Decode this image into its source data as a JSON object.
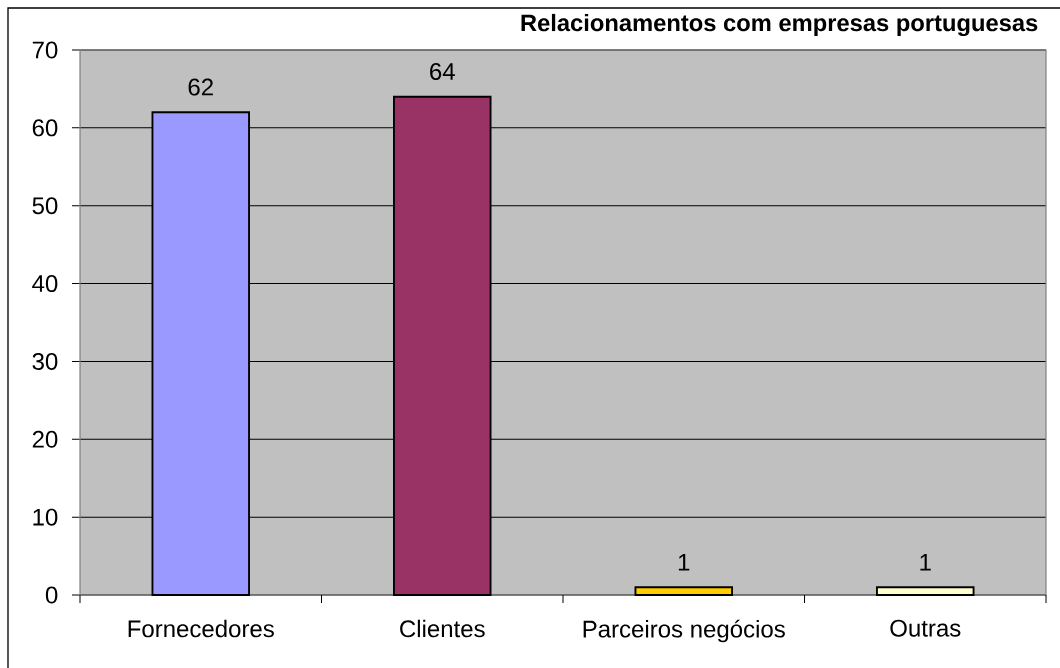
{
  "chart_data": {
    "type": "bar",
    "title": "Relacionamentos com empresas portuguesas",
    "categories": [
      "Fornecedores",
      "Clientes",
      "Parceiros negócios",
      "Outras"
    ],
    "values": [
      62,
      64,
      1,
      1
    ],
    "colors": [
      "#9999ff",
      "#993366",
      "#ffcc00",
      "#ffffcc"
    ],
    "ylim": [
      0,
      70
    ],
    "yticks": [
      0,
      10,
      20,
      30,
      40,
      50,
      60,
      70
    ],
    "grid": "y",
    "data_labels": true
  }
}
